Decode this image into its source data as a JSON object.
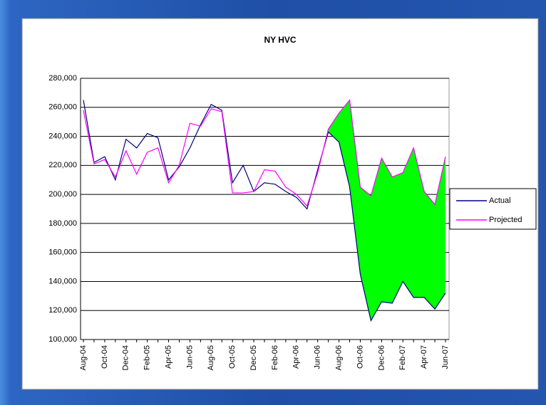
{
  "chart_data": {
    "type": "line",
    "title": "NY HVC",
    "categories": [
      "Aug-04",
      null,
      "Oct-04",
      null,
      "Dec-04",
      null,
      "Feb-05",
      null,
      "Apr-05",
      null,
      "Jun-05",
      null,
      "Aug-05",
      null,
      "Oct-05",
      null,
      "Dec-05",
      null,
      "Feb-06",
      null,
      "Apr-06",
      null,
      "Jun-06",
      null,
      "Aug-06",
      null,
      "Oct-06",
      null,
      "Dec-06",
      null,
      "Feb-07",
      null,
      "Apr-07",
      null,
      "Jun-07"
    ],
    "series": [
      {
        "name": "Actual",
        "color": "#000080",
        "values": [
          265000,
          222000,
          226000,
          210000,
          238000,
          232000,
          242000,
          239000,
          210000,
          219000,
          232000,
          248000,
          262000,
          258000,
          208000,
          220000,
          202000,
          208000,
          207000,
          202000,
          198000,
          190000,
          217000,
          243000,
          236000,
          205000,
          145000,
          113000,
          126000,
          125000,
          140000,
          129000,
          129000,
          121000,
          132000
        ]
      },
      {
        "name": "Projected",
        "color": "#ff00ff",
        "values": [
          258000,
          221000,
          224000,
          212000,
          230000,
          214000,
          229000,
          232000,
          208000,
          220000,
          249000,
          247000,
          259000,
          257000,
          201000,
          201000,
          202000,
          217000,
          216000,
          205000,
          200000,
          192000,
          215000,
          245000,
          256000,
          265000,
          205000,
          199000,
          225000,
          212000,
          215000,
          232000,
          202000,
          193000,
          226000
        ]
      }
    ],
    "fill_color": "#00ff00",
    "ylim": [
      100000,
      280000
    ],
    "yticks": [
      {
        "value": 100000,
        "label": "100,000"
      },
      {
        "value": 120000,
        "label": "120,000"
      },
      {
        "value": 140000,
        "label": "140,000"
      },
      {
        "value": 160000,
        "label": "160,000"
      },
      {
        "value": 180000,
        "label": "180,000"
      },
      {
        "value": 200000,
        "label": "200,000"
      },
      {
        "value": 220000,
        "label": "220,000"
      },
      {
        "value": 240000,
        "label": "240,000"
      },
      {
        "value": 260000,
        "label": "260,000"
      },
      {
        "value": 280000,
        "label": "280,000"
      }
    ],
    "grid": true,
    "legend": "right"
  }
}
